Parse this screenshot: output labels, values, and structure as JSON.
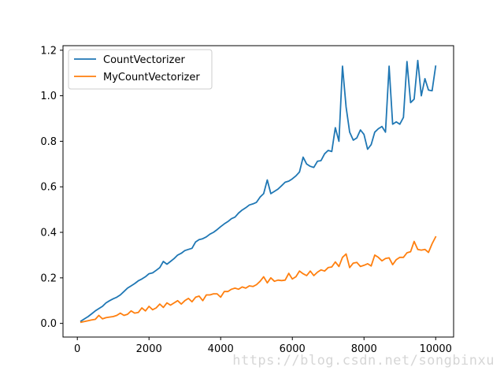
{
  "chart_data": {
    "type": "line",
    "title": "",
    "xlabel": "",
    "ylabel": "",
    "xlim": [
      -400,
      10500
    ],
    "ylim": [
      -0.06,
      1.22
    ],
    "xticks": [
      0,
      2000,
      4000,
      6000,
      8000,
      10000
    ],
    "yticks": [
      0.0,
      0.2,
      0.4,
      0.6,
      0.8,
      1.0,
      1.2
    ],
    "xtick_labels": [
      "0",
      "2000",
      "4000",
      "6000",
      "8000",
      "10000"
    ],
    "ytick_labels": [
      "0.0",
      "0.2",
      "0.4",
      "0.6",
      "0.8",
      "1.0",
      "1.2"
    ],
    "grid": false,
    "legend_position": "top-left",
    "x": [
      100,
      200,
      300,
      400,
      500,
      600,
      700,
      800,
      900,
      1000,
      1100,
      1200,
      1300,
      1400,
      1500,
      1600,
      1700,
      1800,
      1900,
      2000,
      2100,
      2200,
      2300,
      2400,
      2500,
      2600,
      2700,
      2800,
      2900,
      3000,
      3100,
      3200,
      3300,
      3400,
      3500,
      3600,
      3700,
      3800,
      3900,
      4000,
      4100,
      4200,
      4300,
      4400,
      4500,
      4600,
      4700,
      4800,
      4900,
      5000,
      5100,
      5200,
      5300,
      5400,
      5500,
      5600,
      5700,
      5800,
      5900,
      6000,
      6100,
      6200,
      6300,
      6400,
      6500,
      6600,
      6700,
      6800,
      6900,
      7000,
      7100,
      7200,
      7300,
      7400,
      7500,
      7600,
      7700,
      7800,
      7900,
      8000,
      8100,
      8200,
      8300,
      8400,
      8500,
      8600,
      8700,
      8800,
      8900,
      9000,
      9100,
      9200,
      9300,
      9400,
      9500,
      9600,
      9700,
      9800,
      9900,
      10000
    ],
    "series": [
      {
        "name": "CountVectorizer",
        "color": "#1f77b4",
        "values": [
          0.01,
          0.02,
          0.03,
          0.042,
          0.055,
          0.065,
          0.075,
          0.09,
          0.1,
          0.108,
          0.115,
          0.125,
          0.14,
          0.155,
          0.165,
          0.175,
          0.187,
          0.195,
          0.205,
          0.218,
          0.222,
          0.233,
          0.245,
          0.272,
          0.26,
          0.272,
          0.285,
          0.3,
          0.308,
          0.32,
          0.325,
          0.33,
          0.358,
          0.368,
          0.372,
          0.38,
          0.392,
          0.4,
          0.412,
          0.425,
          0.437,
          0.447,
          0.46,
          0.467,
          0.485,
          0.498,
          0.508,
          0.52,
          0.525,
          0.532,
          0.555,
          0.57,
          0.63,
          0.57,
          0.58,
          0.59,
          0.605,
          0.62,
          0.625,
          0.635,
          0.648,
          0.665,
          0.73,
          0.7,
          0.69,
          0.685,
          0.712,
          0.715,
          0.745,
          0.76,
          0.755,
          0.86,
          0.8,
          1.13,
          0.95,
          0.84,
          0.805,
          0.815,
          0.85,
          0.83,
          0.765,
          0.785,
          0.84,
          0.855,
          0.865,
          0.84,
          1.13,
          0.875,
          0.885,
          0.875,
          0.905,
          1.15,
          0.97,
          0.985,
          1.155,
          1.0,
          1.075,
          1.025,
          1.022,
          1.13
        ]
      },
      {
        "name": "MyCountVectorizer",
        "color": "#ff7f0e",
        "values": [
          0.005,
          0.008,
          0.012,
          0.015,
          0.018,
          0.035,
          0.02,
          0.025,
          0.028,
          0.03,
          0.035,
          0.045,
          0.035,
          0.04,
          0.055,
          0.045,
          0.048,
          0.068,
          0.055,
          0.075,
          0.06,
          0.068,
          0.085,
          0.07,
          0.09,
          0.08,
          0.09,
          0.1,
          0.085,
          0.1,
          0.11,
          0.095,
          0.115,
          0.12,
          0.1,
          0.125,
          0.125,
          0.13,
          0.13,
          0.115,
          0.14,
          0.14,
          0.15,
          0.155,
          0.15,
          0.16,
          0.155,
          0.165,
          0.162,
          0.17,
          0.185,
          0.205,
          0.178,
          0.2,
          0.185,
          0.19,
          0.188,
          0.19,
          0.22,
          0.195,
          0.205,
          0.23,
          0.218,
          0.21,
          0.23,
          0.21,
          0.225,
          0.235,
          0.23,
          0.245,
          0.248,
          0.27,
          0.25,
          0.29,
          0.305,
          0.245,
          0.265,
          0.268,
          0.25,
          0.255,
          0.262,
          0.252,
          0.3,
          0.29,
          0.275,
          0.285,
          0.288,
          0.258,
          0.28,
          0.29,
          0.29,
          0.31,
          0.315,
          0.36,
          0.325,
          0.322,
          0.325,
          0.312,
          0.35,
          0.38
        ]
      }
    ]
  },
  "watermark": "https://blog.csdn.net/songbinxu"
}
